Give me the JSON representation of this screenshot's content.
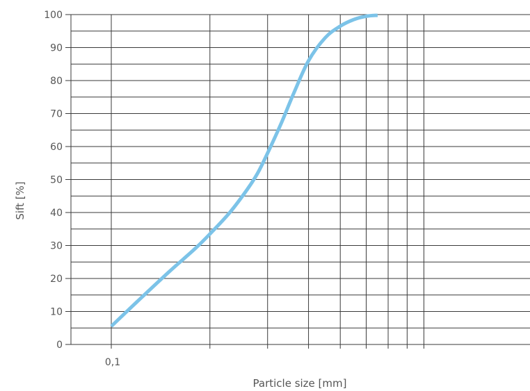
{
  "chart_data": {
    "type": "line",
    "title": "",
    "xlabel": "Particle size [mm]",
    "ylabel": "Sift [%]",
    "x_scale": "log",
    "xlim": [
      0.1,
      1.0
    ],
    "ylim": [
      0,
      100
    ],
    "x_ticks": [
      {
        "value": 0.1,
        "label": "0,1"
      }
    ],
    "x_minor_grid": [
      0.2,
      0.3,
      0.4,
      0.5,
      0.6,
      0.7,
      0.8,
      0.9
    ],
    "y_ticks": [
      {
        "value": 0,
        "label": "0"
      },
      {
        "value": 10,
        "label": "10"
      },
      {
        "value": 20,
        "label": "20"
      },
      {
        "value": 30,
        "label": "30"
      },
      {
        "value": 40,
        "label": "40"
      },
      {
        "value": 50,
        "label": "50"
      },
      {
        "value": 60,
        "label": "60"
      },
      {
        "value": 70,
        "label": "70"
      },
      {
        "value": 80,
        "label": "80"
      },
      {
        "value": 90,
        "label": "90"
      },
      {
        "value": 100,
        "label": "100"
      }
    ],
    "y_minor_grid": [
      5,
      15,
      25,
      35,
      45,
      55,
      65,
      75,
      85,
      95
    ],
    "grid": true,
    "series": [
      {
        "color": "#7cc3e8",
        "points": [
          {
            "x": 0.1,
            "y": 5.5
          },
          {
            "x": 0.12,
            "y": 13
          },
          {
            "x": 0.15,
            "y": 22
          },
          {
            "x": 0.18,
            "y": 29
          },
          {
            "x": 0.2,
            "y": 33.5
          },
          {
            "x": 0.23,
            "y": 40
          },
          {
            "x": 0.26,
            "y": 47
          },
          {
            "x": 0.28,
            "y": 52
          },
          {
            "x": 0.3,
            "y": 58
          },
          {
            "x": 0.33,
            "y": 67
          },
          {
            "x": 0.36,
            "y": 76
          },
          {
            "x": 0.4,
            "y": 86
          },
          {
            "x": 0.45,
            "y": 93
          },
          {
            "x": 0.5,
            "y": 96.5
          },
          {
            "x": 0.55,
            "y": 98.5
          },
          {
            "x": 0.6,
            "y": 99.5
          },
          {
            "x": 0.65,
            "y": 99.8
          }
        ]
      }
    ]
  }
}
